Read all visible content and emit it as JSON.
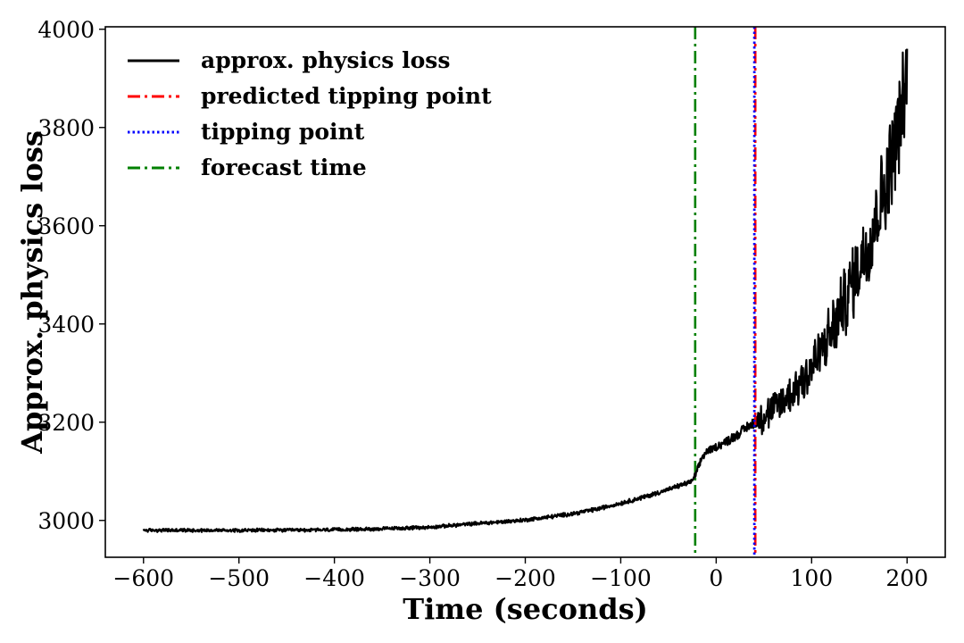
{
  "chart_data": {
    "type": "line",
    "xlabel": "Time (seconds)",
    "ylabel": "Approx. physics loss",
    "xlim": [
      -640,
      240
    ],
    "ylim": [
      2925,
      4005
    ],
    "xticks": [
      -600,
      -500,
      -400,
      -300,
      -200,
      -100,
      0,
      100,
      200
    ],
    "xtick_labels": [
      "−600",
      "−500",
      "−400",
      "−300",
      "−200",
      "−100",
      "0",
      "100",
      "200"
    ],
    "yticks": [
      3000,
      3200,
      3400,
      3600,
      3800,
      4000
    ],
    "ytick_labels": [
      "3000",
      "3200",
      "3400",
      "3600",
      "3800",
      "4000"
    ],
    "grid": false,
    "legend_position": "top-left",
    "series": [
      {
        "name": "approx. physics loss",
        "color": "#000000",
        "style": "solid",
        "trend": [
          [
            -600,
            2980
          ],
          [
            -550,
            2980
          ],
          [
            -500,
            2980
          ],
          [
            -450,
            2980
          ],
          [
            -400,
            2981
          ],
          [
            -350,
            2983
          ],
          [
            -300,
            2986
          ],
          [
            -275,
            2990
          ],
          [
            -250,
            2994
          ],
          [
            -225,
            2997
          ],
          [
            -200,
            3001
          ],
          [
            -175,
            3007
          ],
          [
            -150,
            3014
          ],
          [
            -125,
            3023
          ],
          [
            -100,
            3035
          ],
          [
            -75,
            3048
          ],
          [
            -50,
            3063
          ],
          [
            -25,
            3080
          ],
          [
            -20,
            3100
          ],
          [
            -15,
            3128
          ],
          [
            -10,
            3140
          ],
          [
            0,
            3150
          ],
          [
            10,
            3160
          ],
          [
            20,
            3172
          ],
          [
            30,
            3186
          ],
          [
            40,
            3200
          ],
          [
            60,
            3225
          ],
          [
            80,
            3262
          ],
          [
            100,
            3310
          ],
          [
            120,
            3380
          ],
          [
            140,
            3470
          ],
          [
            160,
            3570
          ],
          [
            180,
            3700
          ],
          [
            200,
            3890
          ]
        ],
        "noise_amplitude": [
          [
            -600,
            3
          ],
          [
            -300,
            3
          ],
          [
            -25,
            4
          ],
          [
            -20,
            6
          ],
          [
            40,
            10
          ],
          [
            45,
            28
          ],
          [
            80,
            38
          ],
          [
            120,
            55
          ],
          [
            160,
            75
          ],
          [
            200,
            90
          ]
        ]
      },
      {
        "name": "predicted tipping point",
        "color": "#ff0000",
        "style": "dashdot",
        "x": 41
      },
      {
        "name": "tipping point",
        "color": "#0000ff",
        "style": "dotted",
        "x": 40
      },
      {
        "name": "forecast time",
        "color": "#008000",
        "style": "dashdot",
        "x": -22
      }
    ]
  }
}
